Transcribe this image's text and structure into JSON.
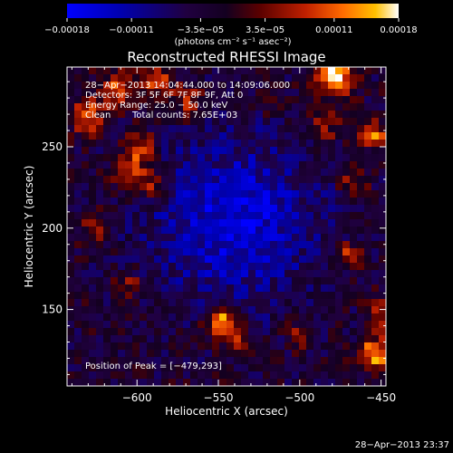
{
  "chart_data": {
    "type": "heatmap",
    "title": "Reconstructed RHESSI Image",
    "xlabel": "Heliocentric X (arcsec)",
    "ylabel": "Heliocentric Y (arcsec)",
    "xlim": [
      -643,
      -447
    ],
    "ylim": [
      103,
      299
    ],
    "x_ticks": [
      {
        "value": -600,
        "label": "−600"
      },
      {
        "value": -550,
        "label": "−550"
      },
      {
        "value": -500,
        "label": "−500"
      },
      {
        "value": -450,
        "label": "−450"
      }
    ],
    "y_ticks": [
      {
        "value": 150,
        "label": "150"
      },
      {
        "value": 200,
        "label": "200"
      },
      {
        "value": 250,
        "label": "250"
      }
    ],
    "colorbar": {
      "min": -0.00018,
      "max": 0.00018,
      "ticks": [
        {
          "value": -0.00018,
          "label": "−0.00018"
        },
        {
          "value": -0.00011,
          "label": "−0.00011"
        },
        {
          "value": -3.5e-05,
          "label": "−3.5e−05"
        },
        {
          "value": 3.5e-05,
          "label": "3.5e−05"
        },
        {
          "value": 0.00011,
          "label": "0.00011"
        },
        {
          "value": 0.00018,
          "label": "0.00018"
        }
      ],
      "unit_label": "(photons cm⁻² s⁻¹ asec⁻²)",
      "colors": [
        "#0000ff",
        "#0000a8",
        "#20004a",
        "#1a0033",
        "#5a0000",
        "#b81500",
        "#ff5500",
        "#ffb000",
        "#ffe850",
        "#ffffff"
      ]
    },
    "annotations": {
      "time_range": "28−Apr−2013 14:04:44.000 to 14:09:06.000",
      "detectors": "Detectors: 3F 5F 6F 7F 8F 9F, Att 0",
      "energy": "Energy Range: 25.0 − 50.0 keV",
      "clean_label": "Clean",
      "total_counts": "Total counts: 7.65E+03",
      "peak": "Position of Peak = [−479,293]"
    },
    "peak_position": [
      -479,
      293
    ],
    "sources": [
      {
        "x": -479,
        "y": 293,
        "amp": 1.0,
        "sigma": 8
      },
      {
        "x": -631,
        "y": 268,
        "amp": 0.7,
        "sigma": 7
      },
      {
        "x": -612,
        "y": 285,
        "amp": 0.55,
        "sigma": 8
      },
      {
        "x": -588,
        "y": 290,
        "amp": 0.55,
        "sigma": 7
      },
      {
        "x": -568,
        "y": 278,
        "amp": 0.5,
        "sigma": 7
      },
      {
        "x": -598,
        "y": 248,
        "amp": 0.65,
        "sigma": 7
      },
      {
        "x": -604,
        "y": 232,
        "amp": 0.6,
        "sigma": 7
      },
      {
        "x": -590,
        "y": 225,
        "amp": 0.55,
        "sigma": 6
      },
      {
        "x": -625,
        "y": 200,
        "amp": 0.35,
        "sigma": 7
      },
      {
        "x": -548,
        "y": 143,
        "amp": 0.9,
        "sigma": 7
      },
      {
        "x": -537,
        "y": 128,
        "amp": 0.5,
        "sigma": 6
      },
      {
        "x": -606,
        "y": 165,
        "amp": 0.4,
        "sigma": 6
      },
      {
        "x": -455,
        "y": 258,
        "amp": 0.7,
        "sigma": 6
      },
      {
        "x": -467,
        "y": 227,
        "amp": 0.5,
        "sigma": 6
      },
      {
        "x": -470,
        "y": 183,
        "amp": 0.55,
        "sigma": 6
      },
      {
        "x": -450,
        "y": 148,
        "amp": 0.55,
        "sigma": 6
      },
      {
        "x": -453,
        "y": 123,
        "amp": 0.85,
        "sigma": 7
      },
      {
        "x": -485,
        "y": 262,
        "amp": 0.4,
        "sigma": 7
      },
      {
        "x": -500,
        "y": 135,
        "amp": 0.35,
        "sigma": 6
      },
      {
        "x": -520,
        "y": 280,
        "amp": 0.3,
        "sigma": 6
      }
    ],
    "negative_region": {
      "description_free": true,
      "x": -540,
      "y": 205,
      "amp": -0.6,
      "sigma": 35
    }
  },
  "footer": {
    "timestamp": "28−Apr−2013 23:37"
  }
}
